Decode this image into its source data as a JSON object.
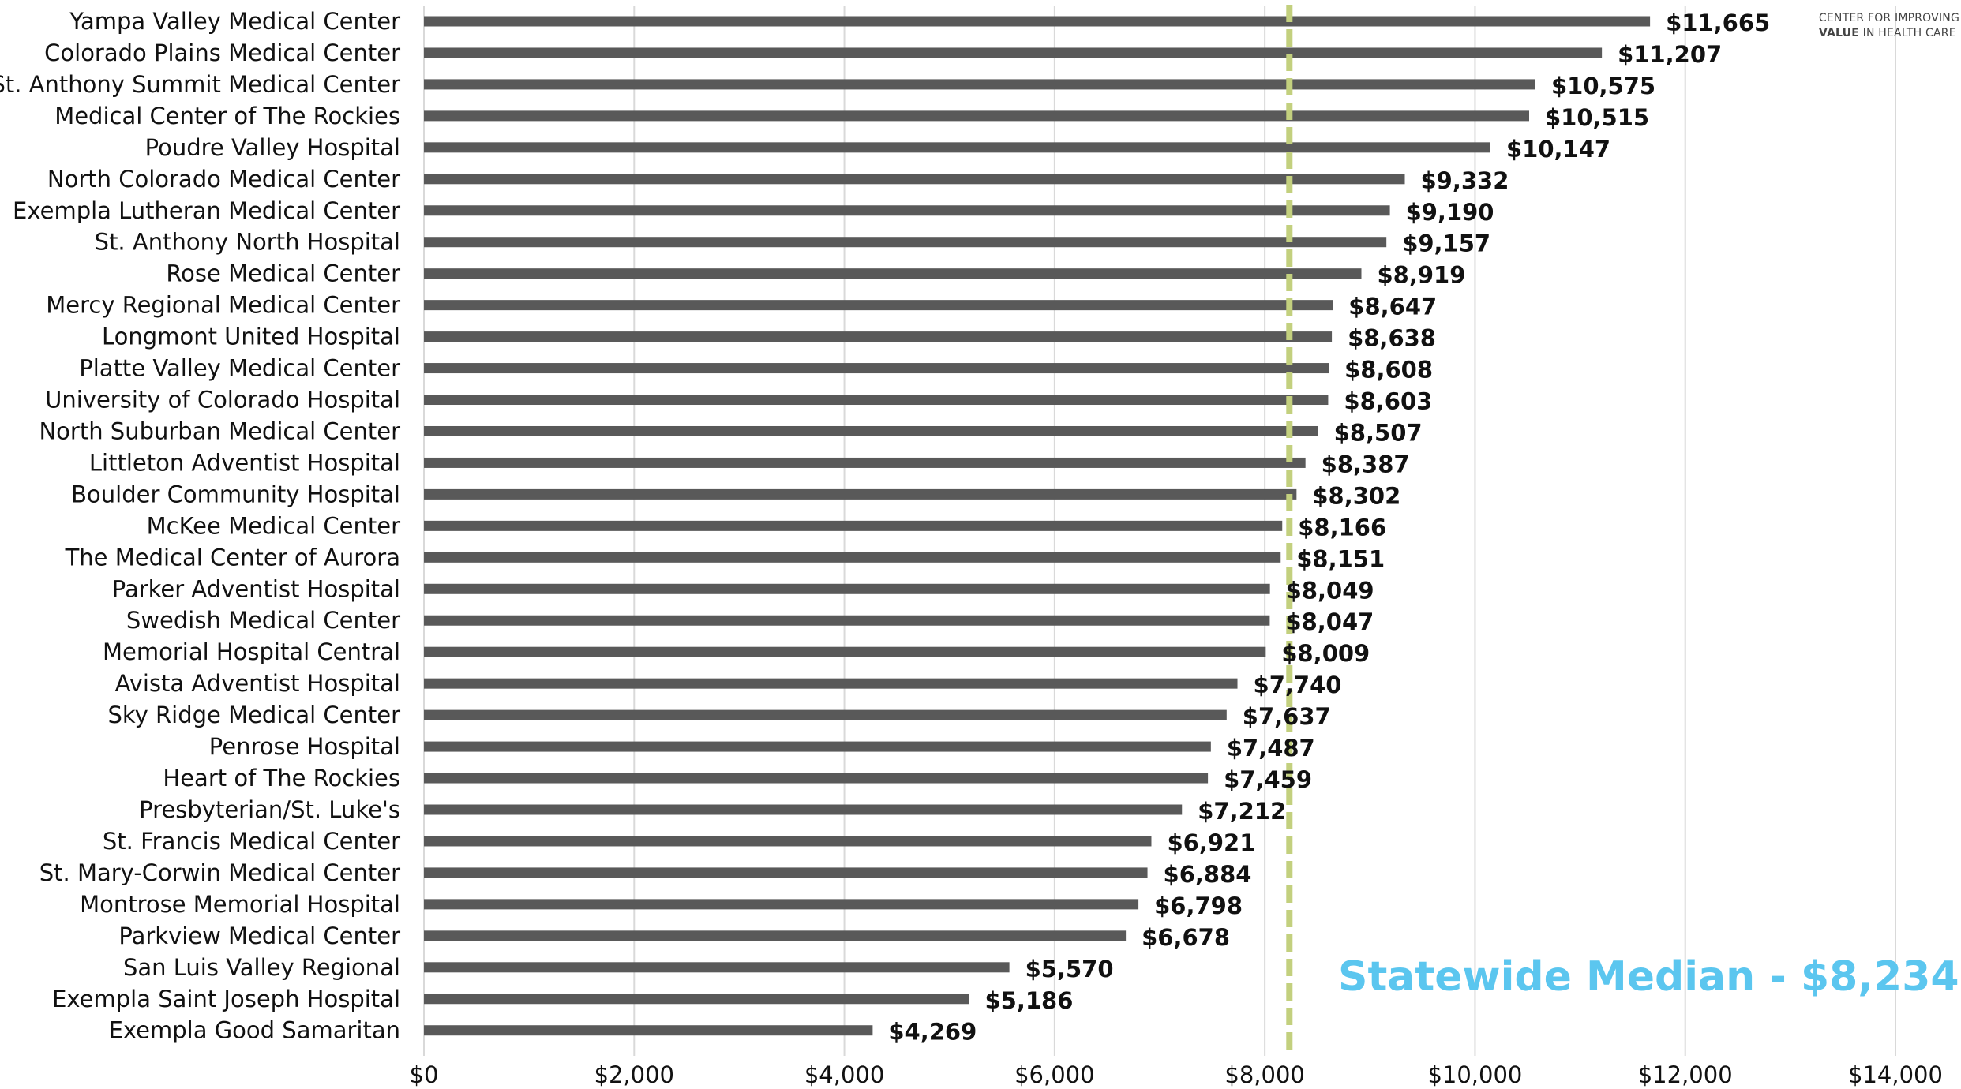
{
  "logo": {
    "line1": "CENTER FOR IMPROVING",
    "line2_bold": "VALUE",
    "line2_rest": " IN HEALTH CARE"
  },
  "median_label": "Statewide Median - $8,234",
  "colors": {
    "bar": "#595959",
    "grid": "#d9d9d9",
    "median_line": "#c3d07e",
    "median_text": "#5bc6ef"
  },
  "chart_data": {
    "type": "bar",
    "orientation": "horizontal",
    "categories": [
      "Yampa Valley Medical Center",
      "Colorado Plains Medical Center",
      "St. Anthony Summit Medical Center",
      "Medical Center of The Rockies",
      "Poudre Valley Hospital",
      "North Colorado Medical Center",
      "Exempla Lutheran Medical Center",
      "St. Anthony North Hospital",
      "Rose Medical Center",
      "Mercy Regional Medical Center",
      "Longmont United Hospital",
      "Platte Valley Medical Center",
      "University of Colorado Hospital",
      "North Suburban Medical Center",
      "Littleton Adventist Hospital",
      "Boulder Community Hospital",
      "McKee Medical Center",
      "The Medical Center of Aurora",
      "Parker Adventist Hospital",
      "Swedish Medical Center",
      "Memorial Hospital Central",
      "Avista Adventist Hospital",
      "Sky Ridge Medical Center",
      "Penrose Hospital",
      "Heart of The Rockies",
      "Presbyterian/St. Luke's",
      "St. Francis Medical Center",
      "St. Mary-Corwin Medical Center",
      "Montrose Memorial Hospital",
      "Parkview Medical Center",
      "San Luis Valley Regional",
      "Exempla Saint Joseph Hospital",
      "Exempla Good Samaritan"
    ],
    "values": [
      11665,
      11207,
      10575,
      10515,
      10147,
      9332,
      9190,
      9157,
      8919,
      8647,
      8638,
      8608,
      8603,
      8507,
      8387,
      8302,
      8166,
      8151,
      8049,
      8047,
      8009,
      7740,
      7637,
      7487,
      7459,
      7212,
      6921,
      6884,
      6798,
      6678,
      5570,
      5186,
      4269
    ],
    "value_labels": [
      "$11,665",
      "$11,207",
      "$10,575",
      "$10,515",
      "$10,147",
      "$9,332",
      "$9,190",
      "$9,157",
      "$8,919",
      "$8,647",
      "$8,638",
      "$8,608",
      "$8,603",
      "$8,507",
      "$8,387",
      "$8,302",
      "$8,166",
      "$8,151",
      "$8,049",
      "$8,047",
      "$8,009",
      "$7,740",
      "$7,637",
      "$7,487",
      "$7,459",
      "$7,212",
      "$6,921",
      "$6,884",
      "$6,798",
      "$6,678",
      "$5,570",
      "$5,186",
      "$4,269"
    ],
    "x_ticks": [
      0,
      2000,
      4000,
      6000,
      8000,
      10000,
      12000,
      14000
    ],
    "x_tick_labels": [
      "$0",
      "$2,000",
      "$4,000",
      "$6,000",
      "$8,000",
      "$10,000",
      "$12,000",
      "$14,000"
    ],
    "xlim": [
      0,
      14000
    ],
    "median": 8234,
    "grid": true,
    "title": "",
    "xlabel": "",
    "ylabel": ""
  }
}
